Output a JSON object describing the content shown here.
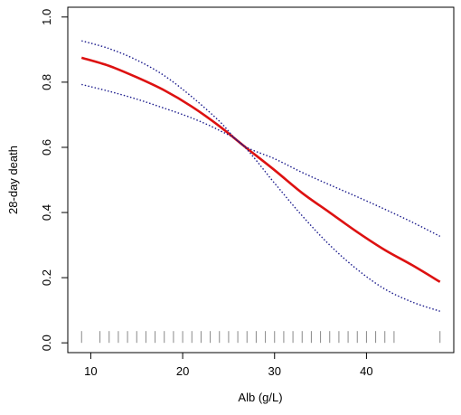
{
  "chart_data": {
    "type": "line",
    "title": "",
    "xlabel": "Alb (g/L)",
    "ylabel": "28-day death",
    "xlim": [
      7.5,
      49.5
    ],
    "ylim": [
      -0.03,
      1.03
    ],
    "x_ticks": [
      10,
      20,
      30,
      40
    ],
    "x_tick_labels": [
      "10",
      "20",
      "30",
      "40"
    ],
    "y_ticks": [
      0.0,
      0.2,
      0.4,
      0.6,
      0.8,
      1.0
    ],
    "y_tick_labels": [
      "0.0",
      "0.2",
      "0.4",
      "0.6",
      "0.8",
      "1.0"
    ],
    "grid": false,
    "series": [
      {
        "role": "estimate",
        "color": "#dd1111",
        "style": "solid",
        "x": [
          9,
          12,
          15,
          18,
          21,
          24,
          26.5,
          30,
          33,
          36,
          39,
          42,
          45,
          48
        ],
        "y": [
          0.875,
          0.85,
          0.815,
          0.775,
          0.725,
          0.665,
          0.608,
          0.53,
          0.46,
          0.4,
          0.34,
          0.285,
          0.238,
          0.187
        ]
      },
      {
        "role": "upper",
        "color": "#1a1a8c",
        "style": "dotted",
        "x": [
          9,
          12,
          15,
          18,
          21,
          24,
          26.5,
          30,
          33,
          36,
          39,
          42,
          45,
          48
        ],
        "y": [
          0.927,
          0.903,
          0.868,
          0.82,
          0.755,
          0.68,
          0.608,
          0.565,
          0.523,
          0.485,
          0.448,
          0.41,
          0.37,
          0.327
        ]
      },
      {
        "role": "lower",
        "color": "#1a1a8c",
        "style": "dotted",
        "x": [
          9,
          12,
          15,
          18,
          21,
          24,
          26.5,
          30,
          33,
          36,
          39,
          42,
          45,
          48
        ],
        "y": [
          0.793,
          0.772,
          0.748,
          0.72,
          0.69,
          0.652,
          0.608,
          0.49,
          0.39,
          0.3,
          0.225,
          0.165,
          0.125,
          0.097
        ]
      }
    ],
    "rug": [
      9,
      11,
      12,
      13,
      14,
      15,
      16,
      17,
      18,
      19,
      20,
      21,
      22,
      23,
      24,
      25,
      26,
      27,
      28,
      29,
      30,
      31,
      32,
      33,
      34,
      35,
      36,
      37,
      38,
      39,
      40,
      41,
      42,
      43,
      48
    ]
  }
}
